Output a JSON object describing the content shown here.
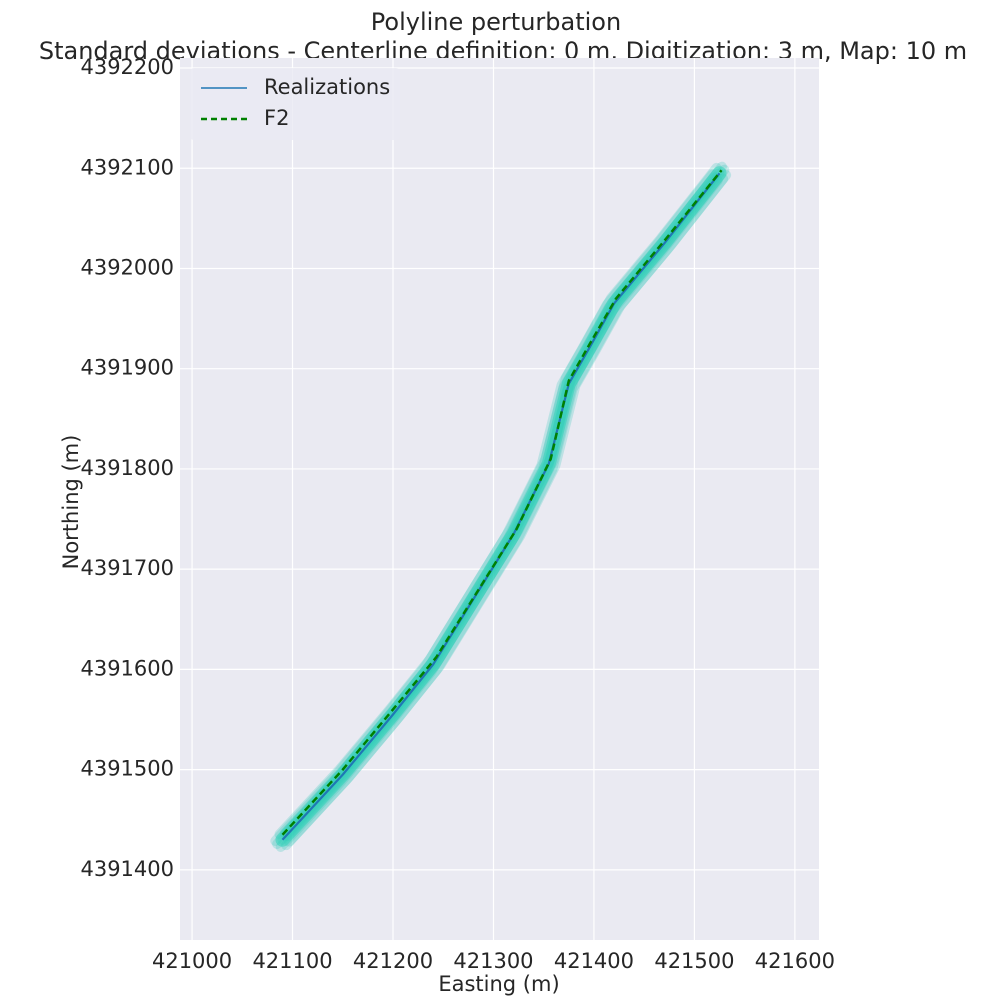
{
  "chart_data": {
    "type": "line",
    "title": "Polyline perturbation",
    "subtitle": "Standard deviations - Centerline definition: 0 m, Digitization: 3 m, Map: 10 m",
    "xlabel": "Easting (m)",
    "ylabel": "Northing (m)",
    "xlim": [
      420988,
      421624
    ],
    "ylim": [
      4391330,
      4392210
    ],
    "xticks": [
      "421000",
      "421100",
      "421200",
      "421300",
      "421400",
      "421500",
      "421600"
    ],
    "yticks": [
      "4391400",
      "4391500",
      "4391600",
      "4391700",
      "4391800",
      "4391900",
      "4392000",
      "4392100",
      "4392200"
    ],
    "grid": true,
    "legend_position": "top-left",
    "series": [
      {
        "name": "Realizations",
        "color": "#1f77b4",
        "style": "solid",
        "note_spread_color": "#20c6b0",
        "x": [
          421090,
          421150,
          421200,
          421240,
          421280,
          421320,
          421355,
          421375,
          421395,
          421420,
          421470,
          421525
        ],
        "y": [
          4391430,
          4391495,
          4391555,
          4391605,
          4391670,
          4391735,
          4391805,
          4391885,
          4391920,
          4391965,
          4392025,
          4392095
        ]
      },
      {
        "name": "F2",
        "color": "#008000",
        "style": "dashed",
        "x": [
          421090,
          421150,
          421200,
          421243,
          421283,
          421323,
          421357,
          421375,
          421396,
          421422,
          421472,
          421527
        ],
        "y": [
          4391435,
          4391500,
          4391560,
          4391612,
          4391676,
          4391740,
          4391810,
          4391888,
          4391925,
          4391970,
          4392030,
          4392098
        ]
      }
    ]
  }
}
